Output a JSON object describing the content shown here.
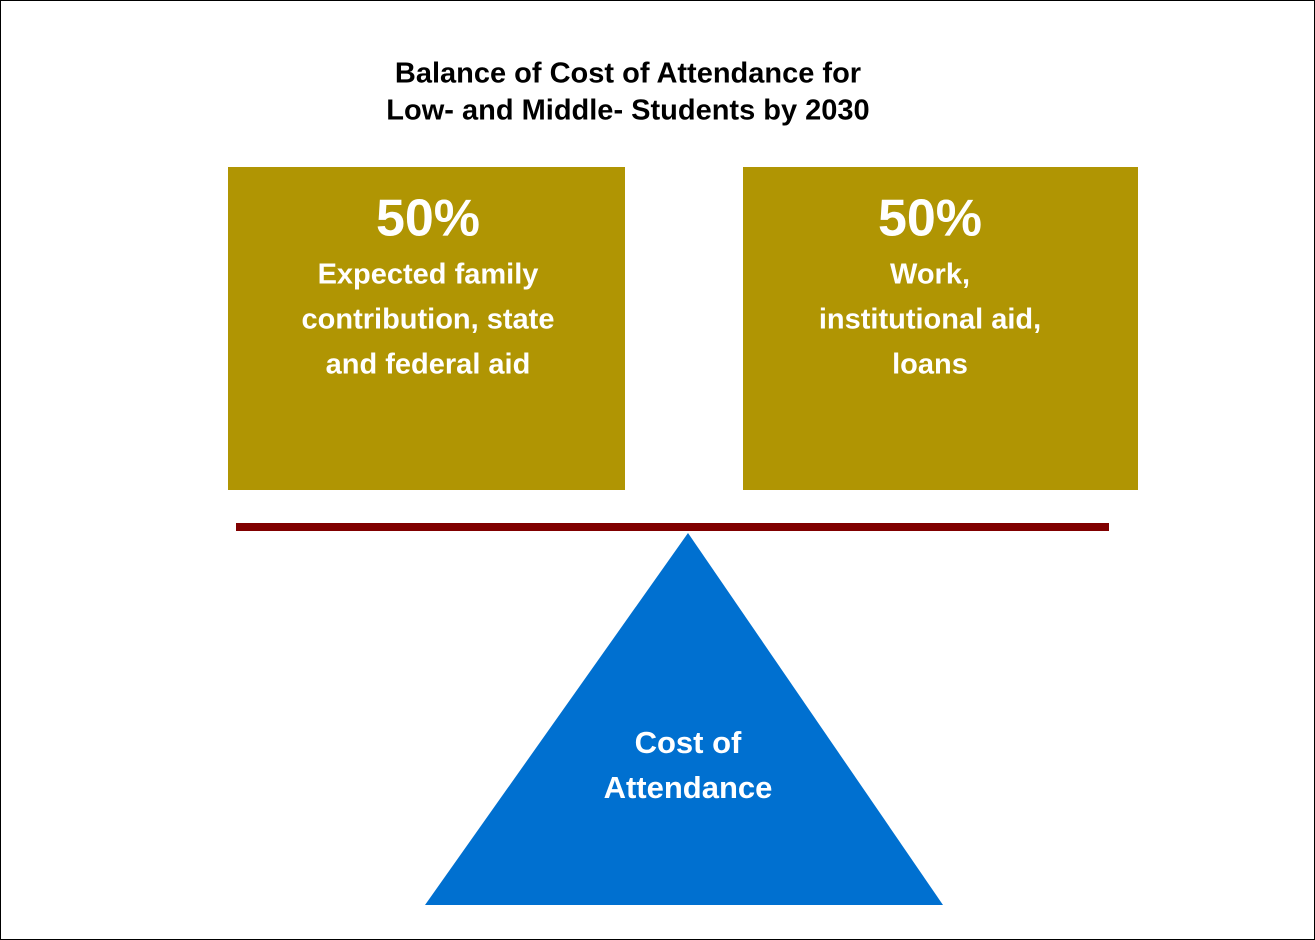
{
  "title": [
    "Balance of Cost of Attendance for",
    "Low- and Middle- Students by 2030"
  ],
  "boxes": [
    {
      "percent": "50%",
      "label": [
        "Expected family",
        "contribution, state",
        "and federal aid"
      ]
    },
    {
      "percent": "50%",
      "label": [
        "Work,",
        "institutional aid,",
        "loans"
      ]
    }
  ],
  "fulcrum": {
    "label": [
      "Cost of",
      "Attendance"
    ]
  }
}
